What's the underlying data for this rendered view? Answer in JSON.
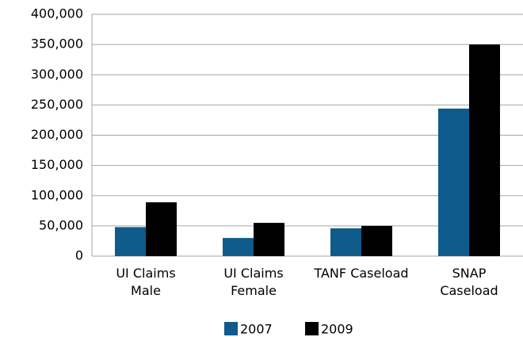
{
  "chart_data": {
    "type": "bar",
    "categories": [
      [
        "UI Claims",
        "Male"
      ],
      [
        "UI Claims",
        "Female"
      ],
      [
        "TANF Caseload"
      ],
      [
        "SNAP",
        "Caseload"
      ]
    ],
    "series": [
      {
        "name": "2007",
        "color": "#0f5b8c",
        "values": [
          48000,
          30000,
          46000,
          244000
        ]
      },
      {
        "name": "2009",
        "color": "#000000",
        "values": [
          89000,
          55000,
          50000,
          350000
        ]
      }
    ],
    "ylim": [
      0,
      400000
    ],
    "yticks": [
      0,
      {
        "value": 50000,
        "label": "50,000"
      },
      {
        "value": 100000,
        "label": "100,000"
      },
      {
        "value": 150000,
        "label": "150,000"
      },
      {
        "value": 200000,
        "label": "200,000"
      },
      {
        "value": 250000,
        "label": "250,000"
      },
      {
        "value": 300000,
        "label": "300,000"
      },
      {
        "value": 350000,
        "label": "350,000"
      },
      {
        "value": 400000,
        "label": "400,000"
      }
    ],
    "grid": true,
    "legend": "bottom"
  }
}
